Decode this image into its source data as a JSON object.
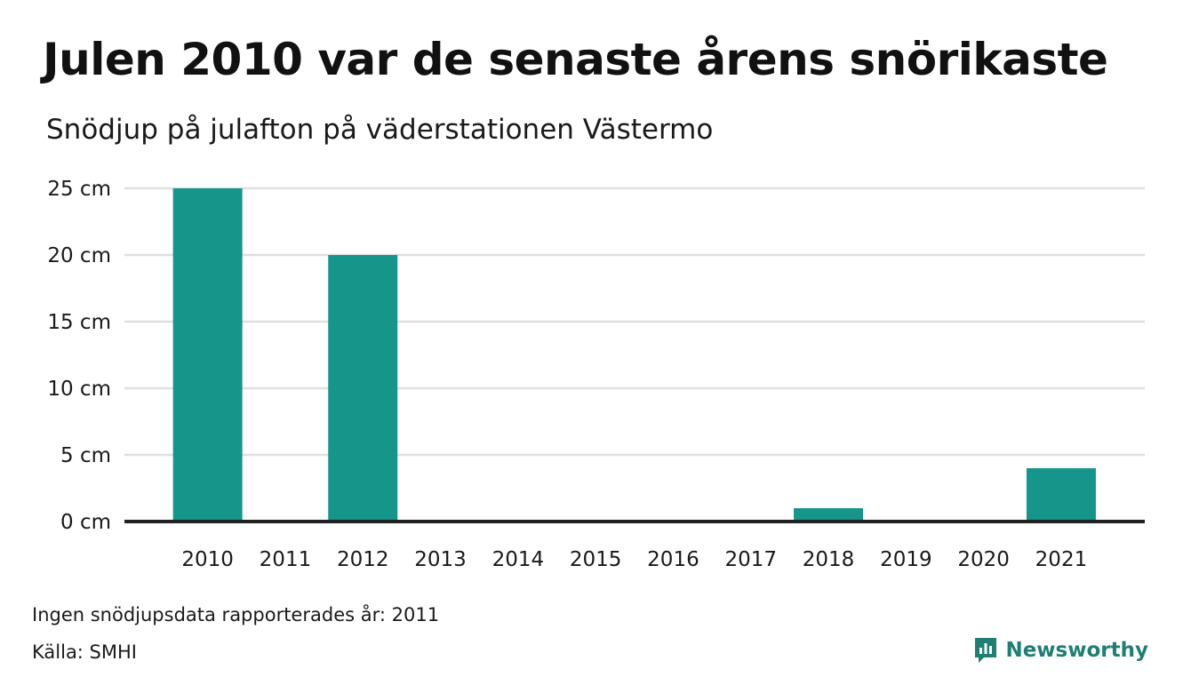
{
  "colors": {
    "bar": "#16968a",
    "grid": "#e0e0e0",
    "baseline": "#222222",
    "brand": "#1f7f73"
  },
  "chart_data": {
    "type": "bar",
    "title": "Julen 2010 var de senaste årens snörikaste",
    "subtitle": "Snödjup på julafton på väderstationen Västermo",
    "categories": [
      "2010",
      "2011",
      "2012",
      "2013",
      "2014",
      "2015",
      "2016",
      "2017",
      "2018",
      "2019",
      "2020",
      "2021"
    ],
    "values": [
      25,
      null,
      20,
      0,
      0,
      0,
      0,
      0,
      1,
      0,
      0,
      4
    ],
    "ylim": [
      0,
      25
    ],
    "yticks": [
      0,
      5,
      10,
      15,
      20,
      25
    ],
    "ytick_labels": [
      "0 cm",
      "5 cm",
      "10 cm",
      "15 cm",
      "20 cm",
      "25 cm"
    ],
    "grid": true,
    "legend": "none"
  },
  "footer": {
    "note": "Ingen snödjupsdata rapporterades år: 2011",
    "source": "Källa: SMHI",
    "brand": "Newsworthy",
    "brand_icon": "newsworthy-logo-icon"
  }
}
